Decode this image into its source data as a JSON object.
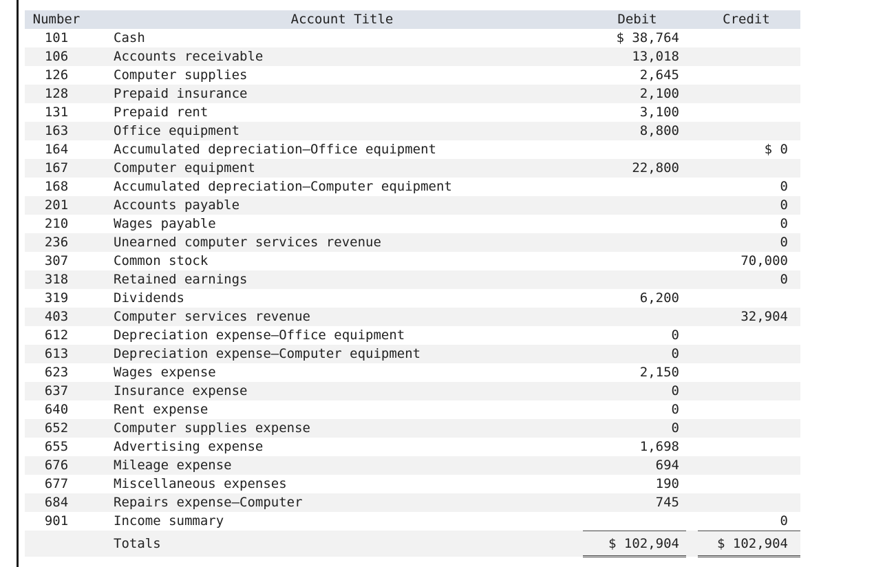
{
  "headers": {
    "number": "Number",
    "title": "Account Title",
    "debit": "Debit",
    "credit": "Credit"
  },
  "rows": [
    {
      "number": "101",
      "title": "Cash",
      "debit": "$ 38,764",
      "credit": ""
    },
    {
      "number": "106",
      "title": "Accounts receivable",
      "debit": "13,018",
      "credit": ""
    },
    {
      "number": "126",
      "title": "Computer supplies",
      "debit": "2,645",
      "credit": ""
    },
    {
      "number": "128",
      "title": "Prepaid insurance",
      "debit": "2,100",
      "credit": ""
    },
    {
      "number": "131",
      "title": "Prepaid rent",
      "debit": "3,100",
      "credit": ""
    },
    {
      "number": "163",
      "title": "Office equipment",
      "debit": "8,800",
      "credit": ""
    },
    {
      "number": "164",
      "title": "Accumulated depreciation—Office equipment",
      "debit": "",
      "credit": "$ 0"
    },
    {
      "number": "167",
      "title": "Computer equipment",
      "debit": "22,800",
      "credit": ""
    },
    {
      "number": "168",
      "title": "Accumulated depreciation—Computer equipment",
      "debit": "",
      "credit": "0"
    },
    {
      "number": "201",
      "title": "Accounts payable",
      "debit": "",
      "credit": "0"
    },
    {
      "number": "210",
      "title": "Wages payable",
      "debit": "",
      "credit": "0"
    },
    {
      "number": "236",
      "title": "Unearned computer services revenue",
      "debit": "",
      "credit": "0"
    },
    {
      "number": "307",
      "title": "Common stock",
      "debit": "",
      "credit": "70,000"
    },
    {
      "number": "318",
      "title": "Retained earnings",
      "debit": "",
      "credit": "0"
    },
    {
      "number": "319",
      "title": "Dividends",
      "debit": "6,200",
      "credit": ""
    },
    {
      "number": "403",
      "title": "Computer services revenue",
      "debit": "",
      "credit": "32,904"
    },
    {
      "number": "612",
      "title": "Depreciation expense—Office equipment",
      "debit": "0",
      "credit": ""
    },
    {
      "number": "613",
      "title": "Depreciation expense—Computer equipment",
      "debit": "0",
      "credit": ""
    },
    {
      "number": "623",
      "title": "Wages expense",
      "debit": "2,150",
      "credit": ""
    },
    {
      "number": "637",
      "title": "Insurance expense",
      "debit": "0",
      "credit": ""
    },
    {
      "number": "640",
      "title": "Rent expense",
      "debit": "0",
      "credit": ""
    },
    {
      "number": "652",
      "title": "Computer supplies expense",
      "debit": "0",
      "credit": ""
    },
    {
      "number": "655",
      "title": "Advertising expense",
      "debit": "1,698",
      "credit": ""
    },
    {
      "number": "676",
      "title": "Mileage expense",
      "debit": "694",
      "credit": ""
    },
    {
      "number": "677",
      "title": "Miscellaneous expenses",
      "debit": "190",
      "credit": ""
    },
    {
      "number": "684",
      "title": "Repairs expense—Computer",
      "debit": "745",
      "credit": ""
    },
    {
      "number": "901",
      "title": "Income summary",
      "debit": "",
      "credit": "0"
    }
  ],
  "totals": {
    "label": "Totals",
    "debit": "$ 102,904",
    "credit": "$ 102,904"
  }
}
